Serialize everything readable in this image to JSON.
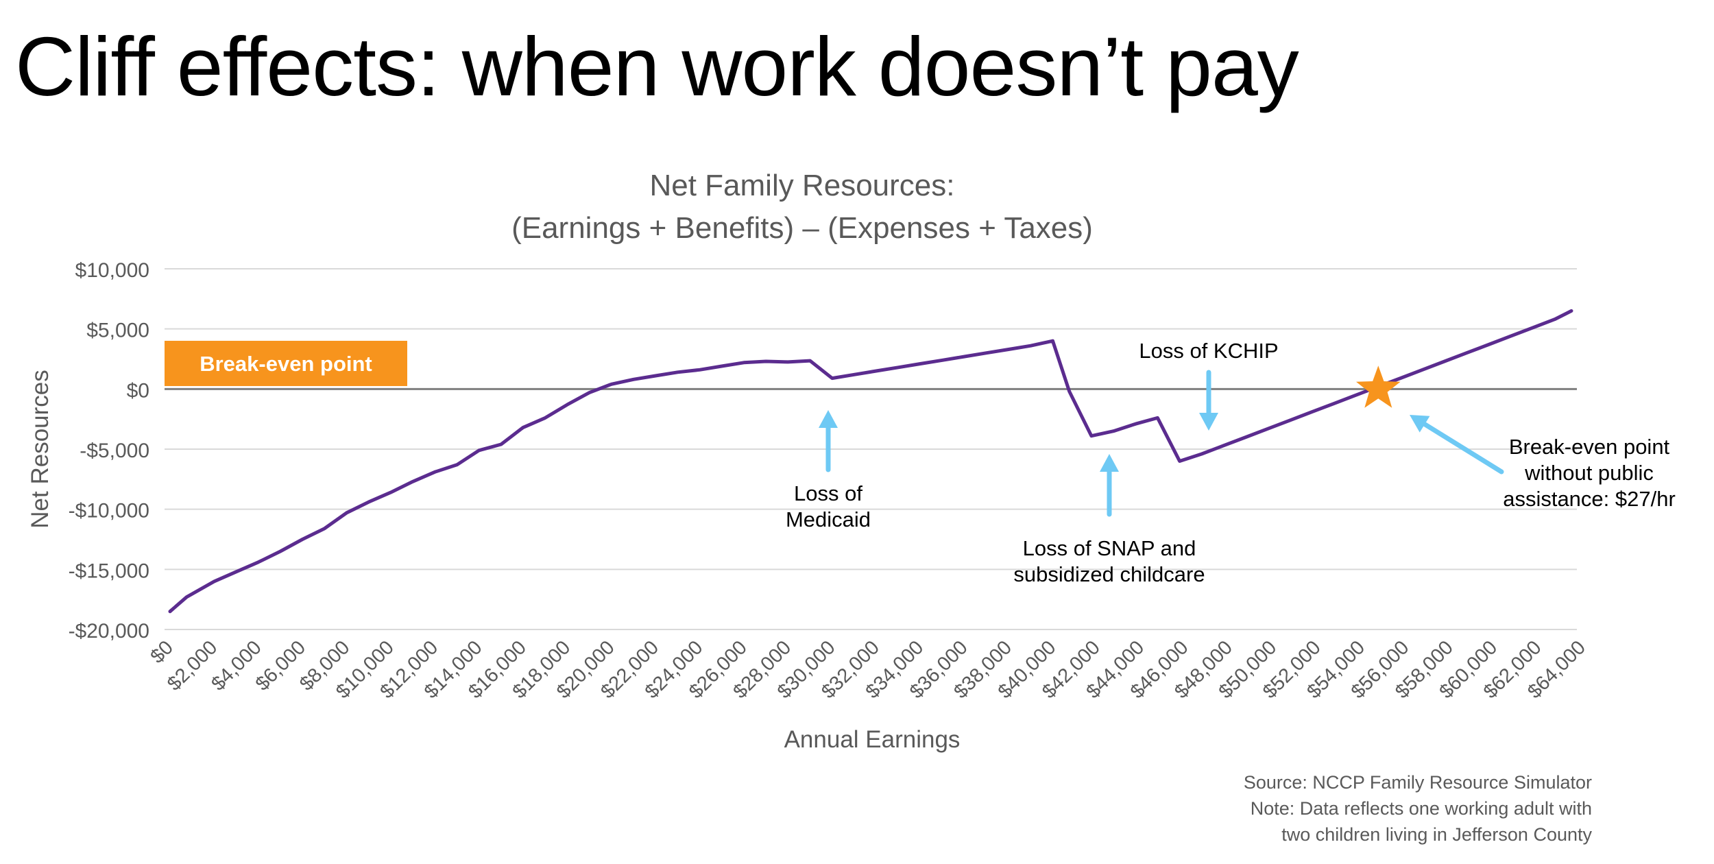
{
  "slide": {
    "title": "Cliff effects: when work doesn’t pay"
  },
  "chart_data": {
    "type": "line",
    "title": "Net Family Resources:",
    "subtitle": "(Earnings + Benefits) – (Expenses + Taxes)",
    "xlabel": "Annual Earnings",
    "ylabel": "Net Resources",
    "xlim": [
      0,
      64000
    ],
    "ylim": [
      -20000,
      10000
    ],
    "grid": "horizontal",
    "x_ticks": [
      0,
      2000,
      4000,
      6000,
      8000,
      10000,
      12000,
      14000,
      16000,
      18000,
      20000,
      22000,
      24000,
      26000,
      28000,
      30000,
      32000,
      34000,
      36000,
      38000,
      40000,
      42000,
      44000,
      46000,
      48000,
      50000,
      52000,
      54000,
      56000,
      58000,
      60000,
      62000,
      64000
    ],
    "x_tick_labels": [
      "$0",
      "$2,000",
      "$4,000",
      "$6,000",
      "$8,000",
      "$10,000",
      "$12,000",
      "$14,000",
      "$16,000",
      "$18,000",
      "$20,000",
      "$22,000",
      "$24,000",
      "$26,000",
      "$28,000",
      "$30,000",
      "$32,000",
      "$34,000",
      "$36,000",
      "$38,000",
      "$40,000",
      "$42,000",
      "$44,000",
      "$46,000",
      "$48,000",
      "$50,000",
      "$52,000",
      "$54,000",
      "$56,000",
      "$58,000",
      "$60,000",
      "$62,000",
      "$64,000"
    ],
    "y_ticks": [
      10000,
      5000,
      0,
      -5000,
      -10000,
      -15000,
      -20000
    ],
    "y_tick_labels": [
      "$10,000",
      "$5,000",
      "$0",
      "-$5,000",
      "-$10,000",
      "-$15,000",
      "-$20,000"
    ],
    "series": [
      {
        "color": "#5b2c8f",
        "x": [
          250,
          1000,
          2250,
          3250,
          4250,
          5250,
          6250,
          7250,
          8250,
          9250,
          10250,
          11250,
          12250,
          13250,
          14250,
          15250,
          16250,
          17250,
          18250,
          19250,
          20250,
          21250,
          22250,
          23250,
          24250,
          25250,
          26250,
          27250,
          28250,
          29250,
          30250,
          31250,
          32250,
          33250,
          34250,
          35250,
          36250,
          37250,
          38250,
          39250,
          40250,
          41000,
          42000,
          43000,
          44000,
          45000,
          46000,
          47000,
          48000,
          49000,
          50000,
          51000,
          52000,
          53000,
          54000,
          55000,
          56000,
          57000,
          58000,
          59000,
          60000,
          61000,
          62000,
          63000,
          63750
        ],
        "y": [
          -18500,
          -17300,
          -16000,
          -15200,
          -14400,
          -13500,
          -12500,
          -11600,
          -10300,
          -9400,
          -8600,
          -7700,
          -6900,
          -6300,
          -5100,
          -4600,
          -3200,
          -2400,
          -1300,
          -300,
          400,
          800,
          1100,
          1400,
          1600,
          1900,
          2200,
          2300,
          2250,
          2350,
          900,
          1200,
          1500,
          1800,
          2100,
          2400,
          2700,
          3000,
          3300,
          3600,
          4000,
          -200,
          -3900,
          -3500,
          -2900,
          -2400,
          -6000,
          -5400,
          -4700,
          -4000,
          -3300,
          -2600,
          -1900,
          -1200,
          -500,
          200,
          900,
          1600,
          2300,
          3000,
          3700,
          4400,
          5100,
          5800,
          6500
        ]
      }
    ],
    "annotations": [
      {
        "lines": [
          "Loss of",
          "Medicaid"
        ]
      },
      {
        "lines": [
          "Loss of SNAP and",
          "subsidized childcare"
        ]
      },
      {
        "lines": [
          "Loss of KCHIP"
        ]
      },
      {
        "lines": [
          "Break-even point",
          "without public",
          "assistance: $27/hr"
        ]
      }
    ],
    "break_even_label": "Break-even point",
    "break_even_x": 55000,
    "colors": {
      "line": "#5b2c8f",
      "arrow": "#6ec9f4",
      "star": "#f7941d",
      "badge": "#f7941d",
      "zero_line": "#7f7f7f",
      "grid": "#d9d9d9",
      "text": "#595959"
    }
  },
  "footer": {
    "source": "Source: NCCP Family Resource Simulator",
    "note_line1": "Note: Data reflects one working adult with",
    "note_line2": "two children living in Jefferson County"
  }
}
